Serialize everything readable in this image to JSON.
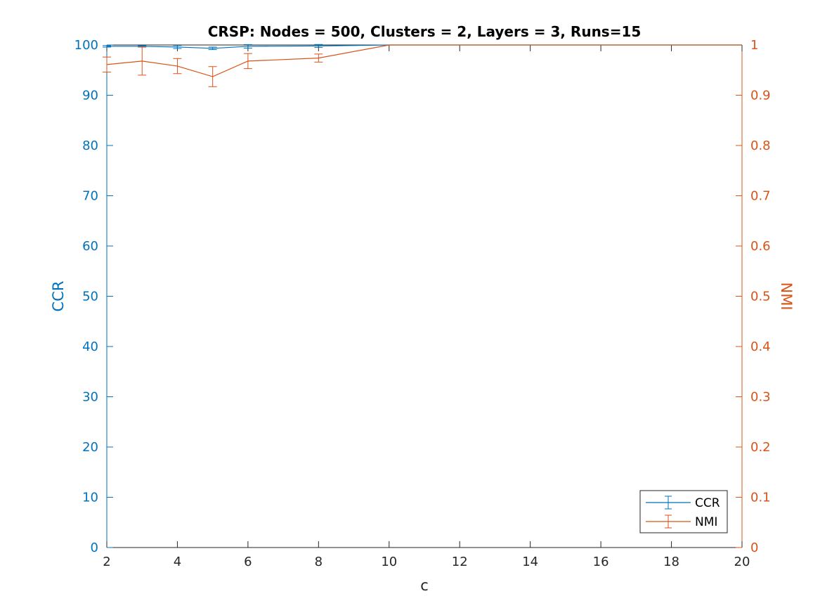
{
  "colors": {
    "left_axis": "#0072BD",
    "right_axis": "#D95319",
    "bottom_axis": "#262626",
    "title": "#000000"
  },
  "chart_data": {
    "type": "line",
    "title": "CRSP: Nodes = 500, Clusters = 2, Layers = 3, Runs=15",
    "xlabel": "c",
    "ylabel_left": "CCR",
    "ylabel_right": "NMI",
    "xlim": [
      2,
      20
    ],
    "ylim_left": [
      0,
      100
    ],
    "ylim_right": [
      0,
      1
    ],
    "x_ticks": [
      "2",
      "4",
      "6",
      "8",
      "10",
      "12",
      "14",
      "16",
      "18",
      "20"
    ],
    "y_left_ticks": [
      "0",
      "10",
      "20",
      "30",
      "40",
      "50",
      "60",
      "70",
      "80",
      "90",
      "100"
    ],
    "y_right_ticks": [
      "0",
      "0.1",
      "0.2",
      "0.3",
      "0.4",
      "0.5",
      "0.6",
      "0.7",
      "0.8",
      "0.9",
      "1"
    ],
    "legend_position": "bottom-right",
    "grid": false,
    "series": [
      {
        "name": "CCR",
        "axis": "left",
        "color": "#0072BD",
        "x": [
          2,
          3,
          4,
          5,
          6,
          8,
          10,
          20
        ],
        "y": [
          99.73,
          99.73,
          99.6,
          99.33,
          99.73,
          99.8,
          100,
          100
        ],
        "err": [
          0.15,
          0.15,
          0.3,
          0.25,
          0.35,
          0.3,
          0,
          0
        ]
      },
      {
        "name": "NMI",
        "axis": "right",
        "color": "#D95319",
        "x": [
          2,
          3,
          4,
          5,
          6,
          8,
          10,
          20
        ],
        "y": [
          0.961,
          0.968,
          0.958,
          0.937,
          0.968,
          0.974,
          1.0,
          1.0
        ],
        "err": [
          0.015,
          0.028,
          0.015,
          0.02,
          0.015,
          0.008,
          0,
          0
        ]
      }
    ]
  }
}
